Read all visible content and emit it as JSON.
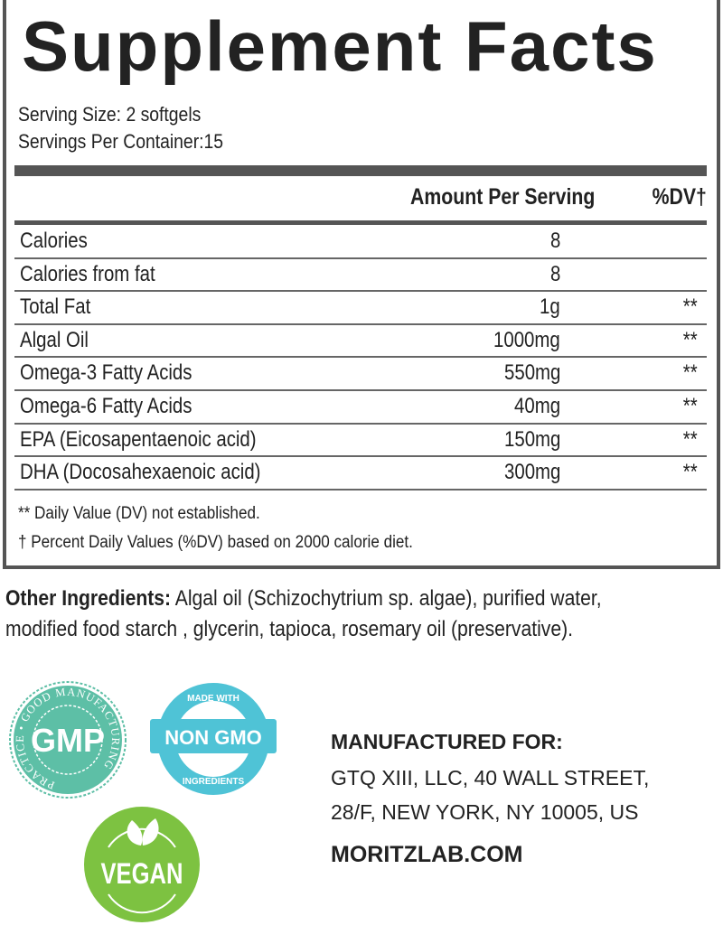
{
  "title": "Supplement Facts",
  "serving_size": "Serving Size: 2 softgels",
  "servings_per_container": "Servings Per Container:15",
  "headers": {
    "amount": "Amount Per Serving",
    "dv": "%DV†"
  },
  "rows": [
    {
      "name": "Calories",
      "amount": "8",
      "dv": ""
    },
    {
      "name": "Calories from fat",
      "amount": "8",
      "dv": ""
    },
    {
      "name": "Total Fat",
      "amount": "1g",
      "dv": "**"
    },
    {
      "name": "Algal Oil",
      "amount": "1000mg",
      "dv": "**"
    },
    {
      "name": "Omega-3 Fatty Acids",
      "amount": "550mg",
      "dv": "**"
    },
    {
      "name": "Omega-6 Fatty Acids",
      "amount": "40mg",
      "dv": "**"
    },
    {
      "name": "EPA (Eicosapentaenoic acid)",
      "amount": "150mg",
      "dv": "**"
    },
    {
      "name": "DHA (Docosahexaenoic acid)",
      "amount": "300mg",
      "dv": "**"
    }
  ],
  "footnotes": [
    "** Daily Value (DV) not established.",
    "† Percent Daily Values (%DV) based on 2000 calorie diet."
  ],
  "other_ingredients": {
    "label": "Other Ingredients:",
    "line1": " Algal oil (Schizochytrium sp. algae), purified water,",
    "line2": "modified food starch , glycerin, tapioca, rosemary oil (preservative)."
  },
  "badges": {
    "gmp": {
      "main": "GMP",
      "ring": "PRACTICE • GOOD MANUFACTURING",
      "color": "#5dbfa6"
    },
    "nongmo": {
      "main": "NON GMO",
      "top": "MADE WITH",
      "bottom": "INGREDIENTS",
      "color": "#4fc3d6"
    },
    "vegan": {
      "main": "VEGAN",
      "color": "#7dc241"
    }
  },
  "manufacturer": {
    "heading": "MANUFACTURED FOR:",
    "line1": "GTQ XIII, LLC, 40 WALL STREET,",
    "line2": "28/F, NEW YORK, NY 10005, US",
    "website": "MORITZLAB.COM"
  }
}
